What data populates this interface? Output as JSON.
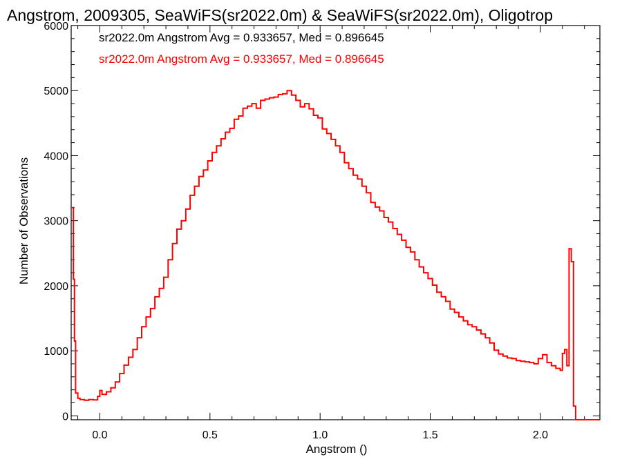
{
  "chart_data": {
    "type": "line",
    "title": "Angstrom, 2009305, SeaWiFS(sr2022.0m) & SeaWiFS(sr2022.0m), Oligotrop",
    "xlabel": "Angstrom ()",
    "ylabel": "Number of Observations",
    "xlim": [
      -0.13,
      2.27
    ],
    "ylim": [
      -60,
      6000
    ],
    "x_ticks": [
      0.0,
      0.5,
      1.0,
      1.5,
      2.0
    ],
    "x_tick_labels": [
      "0.0",
      "0.5",
      "1.0",
      "1.5",
      "2.0"
    ],
    "y_ticks": [
      0,
      1000,
      2000,
      3000,
      4000,
      5000,
      6000
    ],
    "y_tick_labels": [
      "0",
      "1000",
      "2000",
      "3000",
      "4000",
      "5000",
      "6000"
    ],
    "grid": false,
    "annotations": [
      {
        "text": "sr2022.0m Angstrom Avg = 0.933657, Med = 0.896645",
        "color": "#000000"
      },
      {
        "text": "sr2022.0m Angstrom Avg = 0.933657, Med = 0.896645",
        "color": "#ff0000"
      }
    ],
    "series": [
      {
        "color": "#ff0000",
        "step": true,
        "points": [
          [
            -0.13,
            3200
          ],
          [
            -0.12,
            2100
          ],
          [
            -0.115,
            1150
          ],
          [
            -0.11,
            350
          ],
          [
            -0.1,
            270
          ],
          [
            -0.09,
            250
          ],
          [
            -0.07,
            240
          ],
          [
            -0.05,
            250
          ],
          [
            -0.03,
            245
          ],
          [
            -0.01,
            300
          ],
          [
            0.0,
            390
          ],
          [
            0.01,
            330
          ],
          [
            0.03,
            370
          ],
          [
            0.05,
            430
          ],
          [
            0.07,
            520
          ],
          [
            0.09,
            650
          ],
          [
            0.11,
            780
          ],
          [
            0.13,
            900
          ],
          [
            0.15,
            1020
          ],
          [
            0.17,
            1200
          ],
          [
            0.19,
            1370
          ],
          [
            0.21,
            1520
          ],
          [
            0.23,
            1650
          ],
          [
            0.25,
            1830
          ],
          [
            0.27,
            1960
          ],
          [
            0.29,
            2130
          ],
          [
            0.31,
            2400
          ],
          [
            0.33,
            2650
          ],
          [
            0.35,
            2870
          ],
          [
            0.37,
            3000
          ],
          [
            0.39,
            3180
          ],
          [
            0.41,
            3390
          ],
          [
            0.43,
            3530
          ],
          [
            0.45,
            3680
          ],
          [
            0.47,
            3780
          ],
          [
            0.49,
            3920
          ],
          [
            0.51,
            4050
          ],
          [
            0.53,
            4150
          ],
          [
            0.55,
            4260
          ],
          [
            0.57,
            4360
          ],
          [
            0.59,
            4420
          ],
          [
            0.61,
            4560
          ],
          [
            0.63,
            4610
          ],
          [
            0.65,
            4730
          ],
          [
            0.67,
            4760
          ],
          [
            0.69,
            4800
          ],
          [
            0.71,
            4730
          ],
          [
            0.73,
            4850
          ],
          [
            0.75,
            4870
          ],
          [
            0.77,
            4890
          ],
          [
            0.79,
            4900
          ],
          [
            0.81,
            4940
          ],
          [
            0.83,
            4950
          ],
          [
            0.85,
            5000
          ],
          [
            0.87,
            4930
          ],
          [
            0.89,
            4850
          ],
          [
            0.91,
            4750
          ],
          [
            0.93,
            4800
          ],
          [
            0.95,
            4720
          ],
          [
            0.97,
            4620
          ],
          [
            0.99,
            4580
          ],
          [
            1.01,
            4410
          ],
          [
            1.03,
            4340
          ],
          [
            1.05,
            4250
          ],
          [
            1.07,
            4150
          ],
          [
            1.09,
            4050
          ],
          [
            1.11,
            3890
          ],
          [
            1.13,
            3800
          ],
          [
            1.15,
            3700
          ],
          [
            1.17,
            3640
          ],
          [
            1.19,
            3530
          ],
          [
            1.21,
            3430
          ],
          [
            1.23,
            3280
          ],
          [
            1.25,
            3210
          ],
          [
            1.27,
            3150
          ],
          [
            1.29,
            3050
          ],
          [
            1.31,
            2980
          ],
          [
            1.33,
            2880
          ],
          [
            1.35,
            2790
          ],
          [
            1.37,
            2700
          ],
          [
            1.39,
            2590
          ],
          [
            1.41,
            2520
          ],
          [
            1.43,
            2400
          ],
          [
            1.45,
            2290
          ],
          [
            1.47,
            2200
          ],
          [
            1.49,
            2110
          ],
          [
            1.51,
            2010
          ],
          [
            1.53,
            1900
          ],
          [
            1.55,
            1830
          ],
          [
            1.57,
            1760
          ],
          [
            1.59,
            1640
          ],
          [
            1.61,
            1590
          ],
          [
            1.63,
            1520
          ],
          [
            1.65,
            1460
          ],
          [
            1.67,
            1400
          ],
          [
            1.69,
            1370
          ],
          [
            1.71,
            1320
          ],
          [
            1.73,
            1260
          ],
          [
            1.75,
            1200
          ],
          [
            1.77,
            1120
          ],
          [
            1.79,
            1010
          ],
          [
            1.81,
            950
          ],
          [
            1.83,
            920
          ],
          [
            1.85,
            890
          ],
          [
            1.87,
            880
          ],
          [
            1.89,
            850
          ],
          [
            1.91,
            840
          ],
          [
            1.93,
            830
          ],
          [
            1.95,
            820
          ],
          [
            1.97,
            800
          ],
          [
            1.99,
            880
          ],
          [
            2.01,
            940
          ],
          [
            2.03,
            820
          ],
          [
            2.05,
            770
          ],
          [
            2.07,
            730
          ],
          [
            2.09,
            700
          ],
          [
            2.1,
            960
          ],
          [
            2.11,
            1020
          ],
          [
            2.12,
            770
          ],
          [
            2.13,
            2570
          ],
          [
            2.14,
            2370
          ],
          [
            2.15,
            150
          ],
          [
            2.16,
            -60
          ],
          [
            2.27,
            -60
          ]
        ]
      }
    ]
  }
}
